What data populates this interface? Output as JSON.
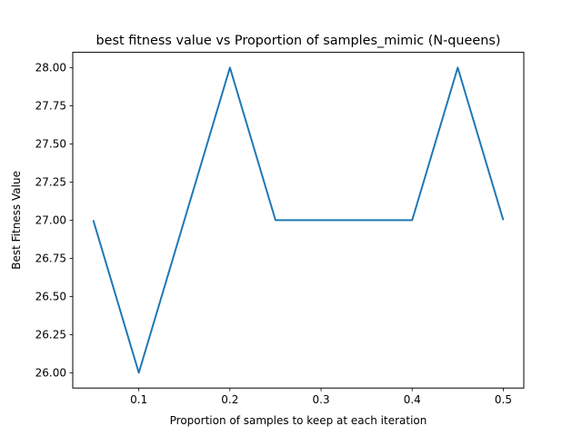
{
  "chart_data": {
    "type": "line",
    "title": "best fitness value vs Proportion of samples_mimic (N-queens)",
    "xlabel": "Proportion of samples to keep at each iteration",
    "ylabel": "Best Fitness Value",
    "x": [
      0.05,
      0.1,
      0.15,
      0.2,
      0.25,
      0.3,
      0.35,
      0.4,
      0.45,
      0.5
    ],
    "series": [
      {
        "values": [
          27,
          26,
          27,
          28,
          27,
          27,
          27,
          27,
          28,
          27
        ],
        "color": "#1f77b4"
      }
    ],
    "xlim": [
      0.0275,
      0.5225
    ],
    "ylim": [
      25.9,
      28.1
    ],
    "xticks": [
      0.1,
      0.2,
      0.3,
      0.4,
      0.5
    ],
    "xtick_labels": [
      "0.1",
      "0.2",
      "0.3",
      "0.4",
      "0.5"
    ],
    "yticks": [
      26.0,
      26.25,
      26.5,
      26.75,
      27.0,
      27.25,
      27.5,
      27.75,
      28.0
    ],
    "ytick_labels": [
      "26.00",
      "26.25",
      "26.50",
      "26.75",
      "27.00",
      "27.25",
      "27.50",
      "27.75",
      "28.00"
    ],
    "grid": false,
    "legend": "none"
  }
}
